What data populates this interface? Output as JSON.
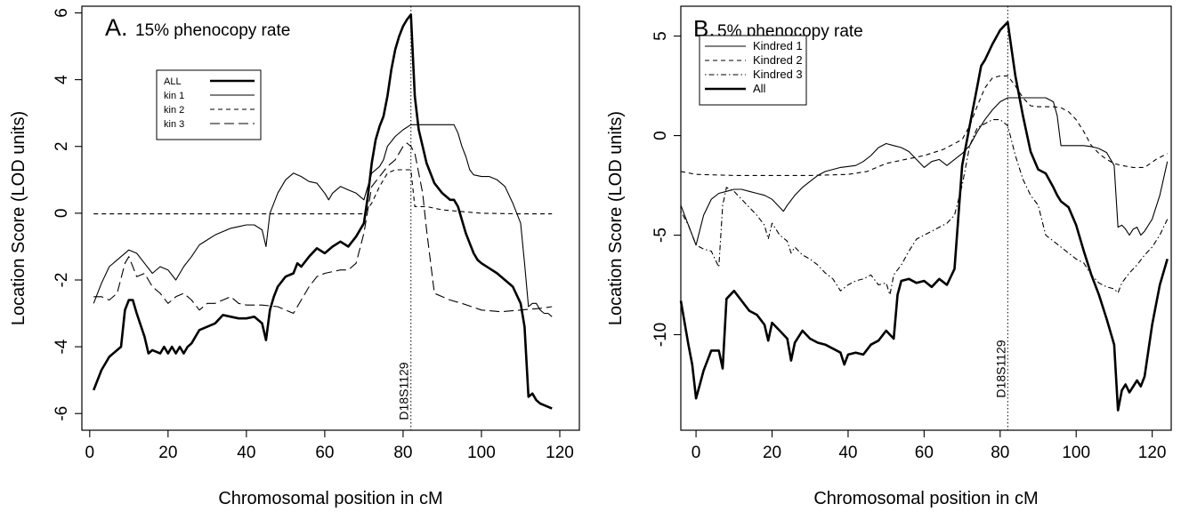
{
  "chart_data": [
    {
      "type": "line",
      "title": "A.",
      "subtitle": "15% phenocopy rate",
      "xlabel": "Chromosomal position in cM",
      "ylabel": "Location  Score  (LOD units)",
      "xlim": [
        -2,
        125
      ],
      "ylim": [
        -6.5,
        6.2
      ],
      "xticks": [
        0,
        20,
        40,
        60,
        80,
        100,
        120
      ],
      "yticks": [
        -6,
        -4,
        -2,
        0,
        2,
        4,
        6
      ],
      "grid": false,
      "legend_position": "upper-left",
      "marker": {
        "x": 82,
        "label": "D18S1129"
      },
      "series": [
        {
          "name": "ALL",
          "style": "solid-thick",
          "x": [
            1,
            3,
            5,
            7,
            8,
            9,
            10,
            11,
            12,
            14,
            15,
            16,
            18,
            19,
            20,
            21,
            22,
            23,
            24,
            25,
            26,
            28,
            30,
            32,
            34,
            36,
            38,
            40,
            42,
            44,
            45,
            46,
            47,
            48,
            50,
            52,
            53,
            54,
            56,
            58,
            60,
            62,
            64,
            66,
            68,
            70,
            71,
            72,
            73,
            74,
            75,
            76,
            77,
            78,
            79,
            80,
            81,
            82,
            83,
            84,
            85,
            86,
            88,
            90,
            92,
            93,
            94,
            95,
            96,
            97,
            98,
            99,
            100,
            102,
            104,
            106,
            108,
            110,
            111,
            112,
            113,
            114,
            115,
            116,
            117,
            118
          ],
          "y": [
            -5.3,
            -4.7,
            -4.3,
            -4.1,
            -4.0,
            -2.9,
            -2.6,
            -2.6,
            -3.0,
            -3.7,
            -4.2,
            -4.1,
            -4.2,
            -4.0,
            -4.2,
            -4.0,
            -4.2,
            -4.0,
            -4.2,
            -4.0,
            -3.9,
            -3.5,
            -3.4,
            -3.3,
            -3.05,
            -3.1,
            -3.15,
            -3.15,
            -3.1,
            -3.3,
            -3.8,
            -2.9,
            -2.5,
            -2.2,
            -1.9,
            -1.8,
            -1.5,
            -1.6,
            -1.3,
            -1.05,
            -1.2,
            -1.0,
            -0.85,
            -1.0,
            -0.7,
            -0.3,
            0.5,
            1.5,
            2.2,
            2.6,
            2.9,
            3.5,
            4.3,
            4.9,
            5.3,
            5.6,
            5.8,
            5.95,
            3.5,
            2.5,
            2.0,
            1.5,
            0.9,
            0.6,
            0.4,
            0.4,
            0.2,
            -0.2,
            -0.6,
            -0.9,
            -1.2,
            -1.4,
            -1.5,
            -1.65,
            -1.8,
            -2.0,
            -2.2,
            -2.7,
            -3.4,
            -5.5,
            -5.4,
            -5.6,
            -5.7,
            -5.75,
            -5.8,
            -5.85
          ]
        },
        {
          "name": "kin 1",
          "style": "solid-thin",
          "x": [
            1,
            3,
            5,
            8,
            10,
            12,
            14,
            16,
            18,
            20,
            22,
            24,
            26,
            28,
            30,
            32,
            34,
            36,
            38,
            40,
            42,
            44,
            45,
            46,
            48,
            50,
            52,
            54,
            56,
            58,
            60,
            61,
            62,
            64,
            66,
            68,
            70,
            72,
            74,
            75,
            76,
            78,
            80,
            82,
            84,
            86,
            88,
            90,
            92,
            93,
            94,
            95,
            96,
            97,
            98,
            100,
            102,
            104,
            106,
            108,
            110,
            111,
            112,
            113,
            114,
            115,
            116,
            117,
            118
          ],
          "y": [
            -2.7,
            -2.1,
            -1.6,
            -1.3,
            -1.1,
            -1.2,
            -1.5,
            -1.8,
            -1.6,
            -1.7,
            -2.0,
            -1.6,
            -1.3,
            -0.95,
            -0.8,
            -0.65,
            -0.55,
            -0.45,
            -0.4,
            -0.35,
            -0.35,
            -0.5,
            -1.0,
            0.0,
            0.6,
            1.0,
            1.2,
            1.1,
            0.95,
            0.9,
            0.6,
            0.4,
            0.6,
            0.8,
            0.7,
            0.6,
            0.4,
            1.2,
            1.4,
            1.6,
            2.0,
            2.3,
            2.5,
            2.65,
            2.65,
            2.65,
            2.65,
            2.65,
            2.65,
            2.65,
            2.4,
            2.0,
            1.7,
            1.3,
            1.15,
            1.1,
            1.1,
            1.0,
            0.8,
            0.3,
            -0.3,
            -1.5,
            -2.8,
            -2.7,
            -2.7,
            -2.9,
            -3.0,
            -3.0,
            -3.1
          ]
        },
        {
          "name": "kin 2",
          "style": "dashed-short",
          "x": [
            1,
            20,
            40,
            60,
            70,
            72,
            74,
            76,
            78,
            80,
            82,
            83,
            84,
            86,
            90,
            100,
            110,
            118
          ],
          "y": [
            -0.02,
            -0.02,
            -0.02,
            -0.02,
            -0.02,
            0.3,
            0.8,
            1.2,
            1.3,
            1.3,
            1.3,
            0.2,
            0.2,
            0.2,
            0.1,
            0.0,
            -0.02,
            -0.02
          ]
        },
        {
          "name": "kin 3",
          "style": "dashed-long",
          "x": [
            1,
            3,
            5,
            7,
            9,
            10,
            12,
            14,
            16,
            18,
            20,
            22,
            24,
            26,
            28,
            30,
            32,
            34,
            36,
            38,
            40,
            44,
            48,
            50,
            52,
            54,
            56,
            58,
            60,
            62,
            64,
            66,
            68,
            70,
            72,
            74,
            76,
            78,
            80,
            81,
            82,
            83,
            84,
            85,
            86,
            88,
            90,
            92,
            95,
            100,
            105,
            110,
            115,
            118
          ],
          "y": [
            -2.5,
            -2.5,
            -2.6,
            -2.4,
            -1.5,
            -1.3,
            -1.9,
            -1.8,
            -2.2,
            -2.4,
            -2.7,
            -2.5,
            -2.4,
            -2.6,
            -2.9,
            -2.7,
            -2.7,
            -2.6,
            -2.5,
            -2.7,
            -2.75,
            -2.75,
            -2.8,
            -2.9,
            -3.0,
            -2.6,
            -2.2,
            -1.9,
            -1.8,
            -1.75,
            -1.7,
            -1.7,
            -1.5,
            -0.6,
            0.8,
            1.1,
            1.4,
            1.6,
            2.0,
            2.1,
            2.0,
            1.8,
            1.2,
            0.6,
            -0.5,
            -2.4,
            -2.5,
            -2.6,
            -2.7,
            -2.9,
            -2.95,
            -2.9,
            -2.85,
            -2.8
          ]
        }
      ]
    },
    {
      "type": "line",
      "title": "B.",
      "subtitle": "5% phenocopy rate",
      "xlabel": "Chromosomal position in cM",
      "ylabel": "Location  Score  (LOD units)",
      "xlim": [
        -4,
        125
      ],
      "ylim": [
        -14.8,
        6.5
      ],
      "xticks": [
        0,
        20,
        40,
        60,
        80,
        100,
        120
      ],
      "yticks": [
        -10,
        -5,
        0,
        5
      ],
      "grid": false,
      "legend_position": "upper-left",
      "marker": {
        "x": 82,
        "label": "D18S1129"
      },
      "series": [
        {
          "name": "Kindred 1",
          "style": "solid-thin",
          "x": [
            -4,
            -2,
            0,
            2,
            4,
            6,
            8,
            10,
            12,
            14,
            16,
            18,
            20,
            22,
            23,
            24,
            26,
            28,
            30,
            32,
            34,
            36,
            38,
            40,
            42,
            44,
            46,
            48,
            50,
            52,
            54,
            56,
            58,
            60,
            62,
            64,
            66,
            68,
            70,
            72,
            74,
            76,
            78,
            80,
            82,
            84,
            86,
            88,
            90,
            92,
            94,
            95,
            96,
            98,
            100,
            102,
            104,
            106,
            108,
            110,
            111,
            112,
            113,
            114,
            115,
            116,
            117,
            118,
            120,
            122,
            124
          ],
          "y": [
            -3.5,
            -4.5,
            -5.5,
            -4.0,
            -3.2,
            -2.9,
            -2.8,
            -2.7,
            -2.7,
            -2.8,
            -2.9,
            -3.0,
            -3.2,
            -3.6,
            -3.8,
            -3.5,
            -3.0,
            -2.6,
            -2.3,
            -2.0,
            -1.8,
            -1.7,
            -1.6,
            -1.55,
            -1.5,
            -1.3,
            -1.0,
            -0.6,
            -0.4,
            -0.5,
            -0.6,
            -0.8,
            -1.2,
            -1.6,
            -1.3,
            -1.2,
            -1.5,
            -1.2,
            -0.9,
            -0.5,
            0.2,
            0.8,
            1.3,
            1.7,
            1.9,
            1.9,
            1.9,
            1.9,
            1.9,
            1.9,
            1.7,
            1.0,
            -0.5,
            -0.5,
            -0.5,
            -0.5,
            -0.55,
            -0.65,
            -0.85,
            -1.5,
            -4.6,
            -4.5,
            -4.7,
            -5.0,
            -4.7,
            -4.6,
            -5.0,
            -4.8,
            -4.2,
            -3.0,
            -1.3
          ]
        },
        {
          "name": "Kindred 2",
          "style": "dashed-short",
          "x": [
            -4,
            0,
            10,
            20,
            30,
            40,
            45,
            50,
            55,
            60,
            65,
            70,
            72,
            74,
            76,
            78,
            80,
            82,
            84,
            86,
            88,
            90,
            92,
            94,
            96,
            98,
            100,
            102,
            104,
            106,
            108,
            110,
            112,
            115,
            118,
            121,
            124
          ],
          "y": [
            -1.8,
            -1.95,
            -2.0,
            -2.0,
            -2.0,
            -1.95,
            -1.8,
            -1.4,
            -1.2,
            -1.0,
            -0.7,
            -0.2,
            0.5,
            1.5,
            2.4,
            2.9,
            3.0,
            3.0,
            2.5,
            1.9,
            1.5,
            1.45,
            1.45,
            1.45,
            1.4,
            1.2,
            0.8,
            0.2,
            -0.5,
            -0.9,
            -1.2,
            -1.4,
            -1.5,
            -1.6,
            -1.6,
            -1.2,
            -0.9
          ]
        },
        {
          "name": "Kindred 3",
          "style": "dot-dash",
          "x": [
            -4,
            -2,
            0,
            2,
            4,
            5,
            6,
            7,
            8,
            10,
            12,
            14,
            16,
            18,
            19,
            20,
            22,
            24,
            25,
            26,
            28,
            30,
            32,
            34,
            36,
            38,
            40,
            42,
            44,
            46,
            48,
            50,
            51,
            52,
            54,
            56,
            58,
            60,
            62,
            64,
            66,
            68,
            70,
            72,
            74,
            76,
            78,
            80,
            82,
            84,
            86,
            88,
            90,
            92,
            94,
            96,
            98,
            100,
            102,
            104,
            106,
            108,
            110,
            111,
            112,
            114,
            116,
            118,
            120,
            122,
            124
          ],
          "y": [
            -3.8,
            -4.5,
            -5.5,
            -5.7,
            -5.8,
            -6.2,
            -6.6,
            -3.5,
            -2.6,
            -2.8,
            -3.2,
            -3.6,
            -4.0,
            -4.5,
            -5.2,
            -4.4,
            -5.0,
            -5.3,
            -5.9,
            -5.6,
            -6.0,
            -6.2,
            -6.5,
            -6.9,
            -7.2,
            -7.8,
            -7.5,
            -7.3,
            -7.2,
            -7.0,
            -7.5,
            -7.4,
            -8.0,
            -7.0,
            -6.5,
            -5.8,
            -5.2,
            -5.0,
            -4.8,
            -4.6,
            -4.4,
            -4.0,
            -2.5,
            -0.5,
            0.4,
            0.6,
            0.8,
            0.8,
            0.5,
            -1.0,
            -2.2,
            -3.0,
            -3.5,
            -5.0,
            -5.3,
            -5.6,
            -5.9,
            -6.2,
            -6.4,
            -7.0,
            -7.4,
            -7.6,
            -7.7,
            -7.9,
            -7.4,
            -6.9,
            -6.5,
            -6.0,
            -5.6,
            -5.0,
            -4.2
          ]
        },
        {
          "name": "All",
          "style": "solid-thick",
          "x": [
            -4,
            -2,
            -1,
            0,
            1,
            2,
            4,
            6,
            7,
            8,
            10,
            12,
            14,
            16,
            18,
            19,
            20,
            22,
            24,
            25,
            26,
            28,
            30,
            32,
            34,
            36,
            38,
            39,
            40,
            42,
            44,
            46,
            48,
            50,
            51,
            52,
            53,
            54,
            56,
            58,
            60,
            62,
            64,
            66,
            68,
            70,
            72,
            74,
            75,
            76,
            78,
            80,
            82,
            84,
            86,
            88,
            90,
            92,
            94,
            95,
            96,
            98,
            100,
            102,
            104,
            106,
            108,
            110,
            111,
            112,
            113,
            114,
            116,
            117,
            118,
            120,
            122,
            124
          ],
          "y": [
            -8.3,
            -10.5,
            -11.5,
            -13.2,
            -12.5,
            -11.8,
            -10.8,
            -10.8,
            -11.7,
            -8.2,
            -7.8,
            -8.3,
            -8.8,
            -9.0,
            -9.5,
            -10.3,
            -9.4,
            -9.8,
            -10.2,
            -11.3,
            -10.4,
            -9.8,
            -10.2,
            -10.4,
            -10.5,
            -10.7,
            -10.9,
            -11.5,
            -11.0,
            -10.9,
            -11.0,
            -10.5,
            -10.3,
            -9.8,
            -10.0,
            -10.2,
            -8.0,
            -7.3,
            -7.2,
            -7.4,
            -7.3,
            -7.6,
            -7.2,
            -7.5,
            -6.7,
            -1.5,
            0.5,
            2.5,
            3.5,
            3.8,
            4.6,
            5.3,
            5.7,
            3.0,
            1.0,
            -0.8,
            -1.7,
            -1.9,
            -2.6,
            -3.0,
            -3.3,
            -3.6,
            -4.5,
            -5.8,
            -7.0,
            -8.0,
            -9.2,
            -10.5,
            -13.8,
            -12.8,
            -12.5,
            -12.9,
            -12.3,
            -12.6,
            -12.1,
            -9.5,
            -7.5,
            -6.2
          ]
        }
      ]
    }
  ]
}
